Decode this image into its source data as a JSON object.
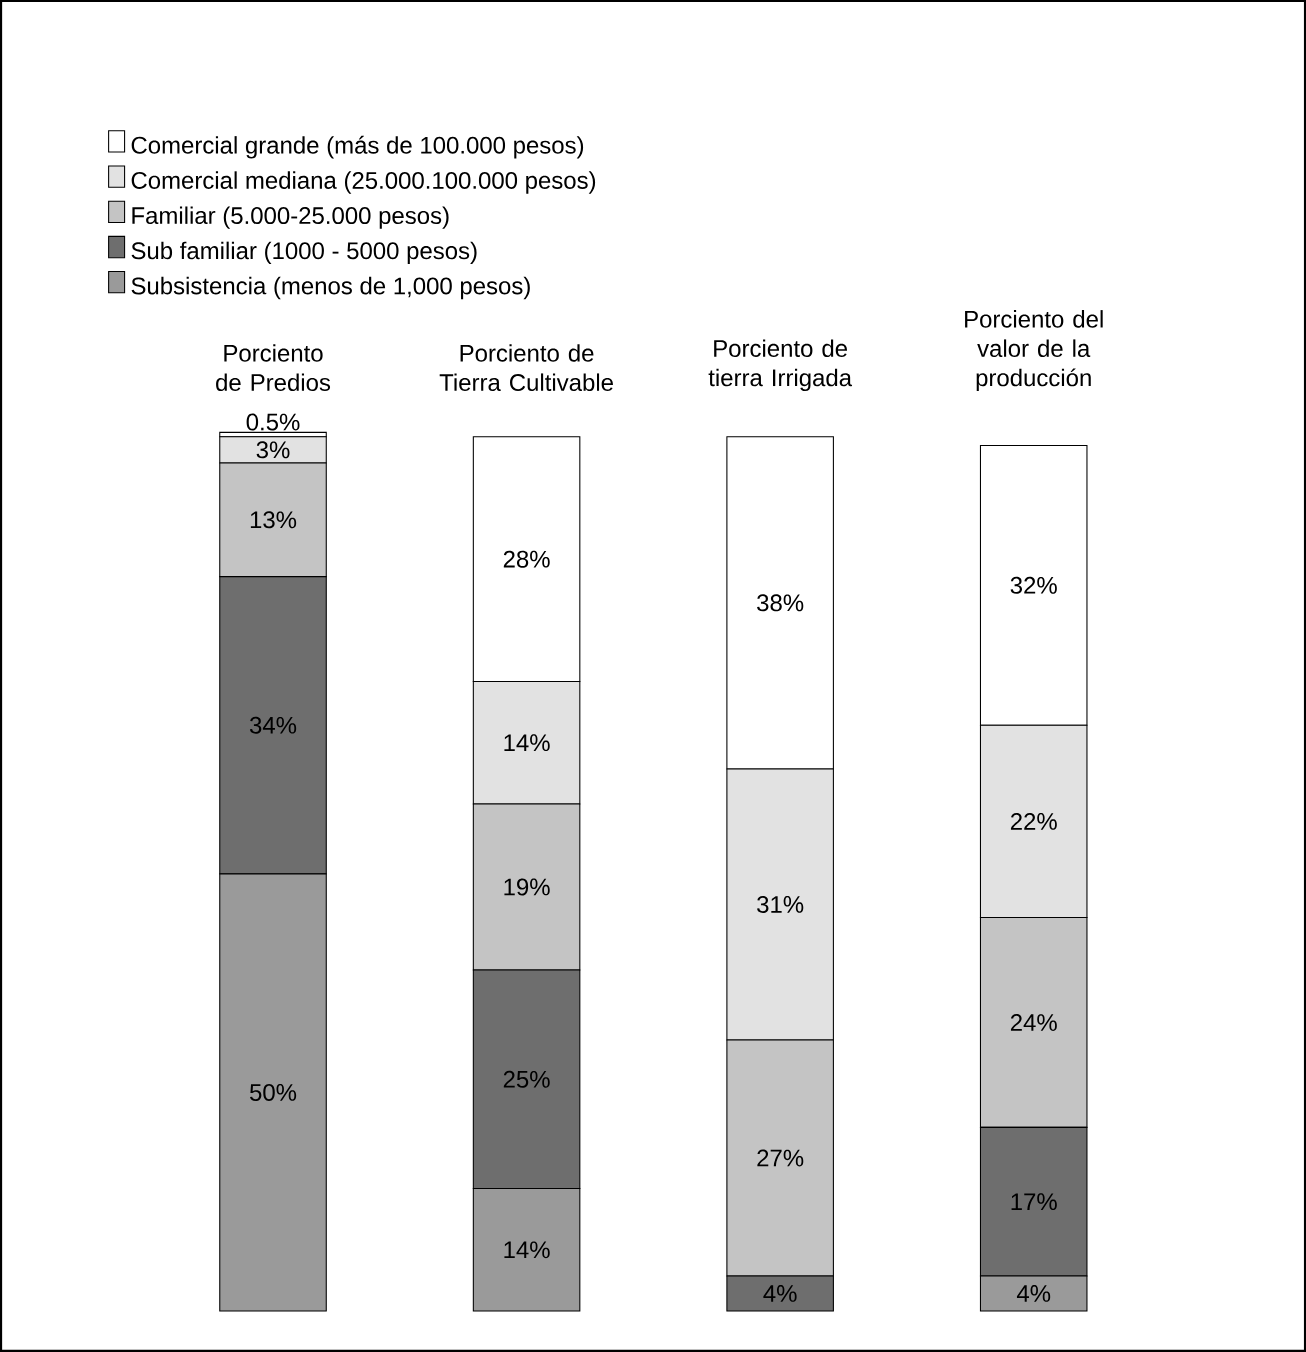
{
  "chart_data": {
    "type": "bar",
    "stacked": true,
    "legend": "top left",
    "categories": [
      "Porciento de Predios",
      "Porciento de Tierra Cultivable",
      "Porciento de tierra Irrigada",
      "Porciento del valor de la producción"
    ],
    "series": [
      {
        "name": "Subsistencia  (menos de 1,000 pesos)",
        "color": "#9a9a9a",
        "values": [
          50,
          14,
          0,
          4
        ],
        "value_labels": [
          "50%",
          "14%",
          null,
          "4%"
        ]
      },
      {
        "name": "Sub familiar (1000 - 5000 pesos)",
        "color": "#6e6e6e",
        "values": [
          34,
          25,
          4,
          17
        ],
        "value_labels": [
          "34%",
          "25%",
          "4%",
          "17%"
        ]
      },
      {
        "name": "Familiar (5.000-25.000 pesos)",
        "color": "#c4c4c4",
        "values": [
          13,
          19,
          27,
          24
        ],
        "value_labels": [
          "13%",
          "19%",
          "27%",
          "24%"
        ]
      },
      {
        "name": "Comercial mediana (25.000.100.000 pesos)",
        "color": "#e2e2e2",
        "values": [
          3,
          14,
          31,
          22
        ],
        "value_labels": [
          "3%",
          "14%",
          "31%",
          "22%"
        ]
      },
      {
        "name": "Comercial grande (más de 100.000 pesos)",
        "color": "#ffffff",
        "values": [
          0.5,
          28,
          38,
          32
        ],
        "value_labels": [
          "0.5%",
          "28%",
          "38%",
          "32%"
        ]
      }
    ]
  }
}
